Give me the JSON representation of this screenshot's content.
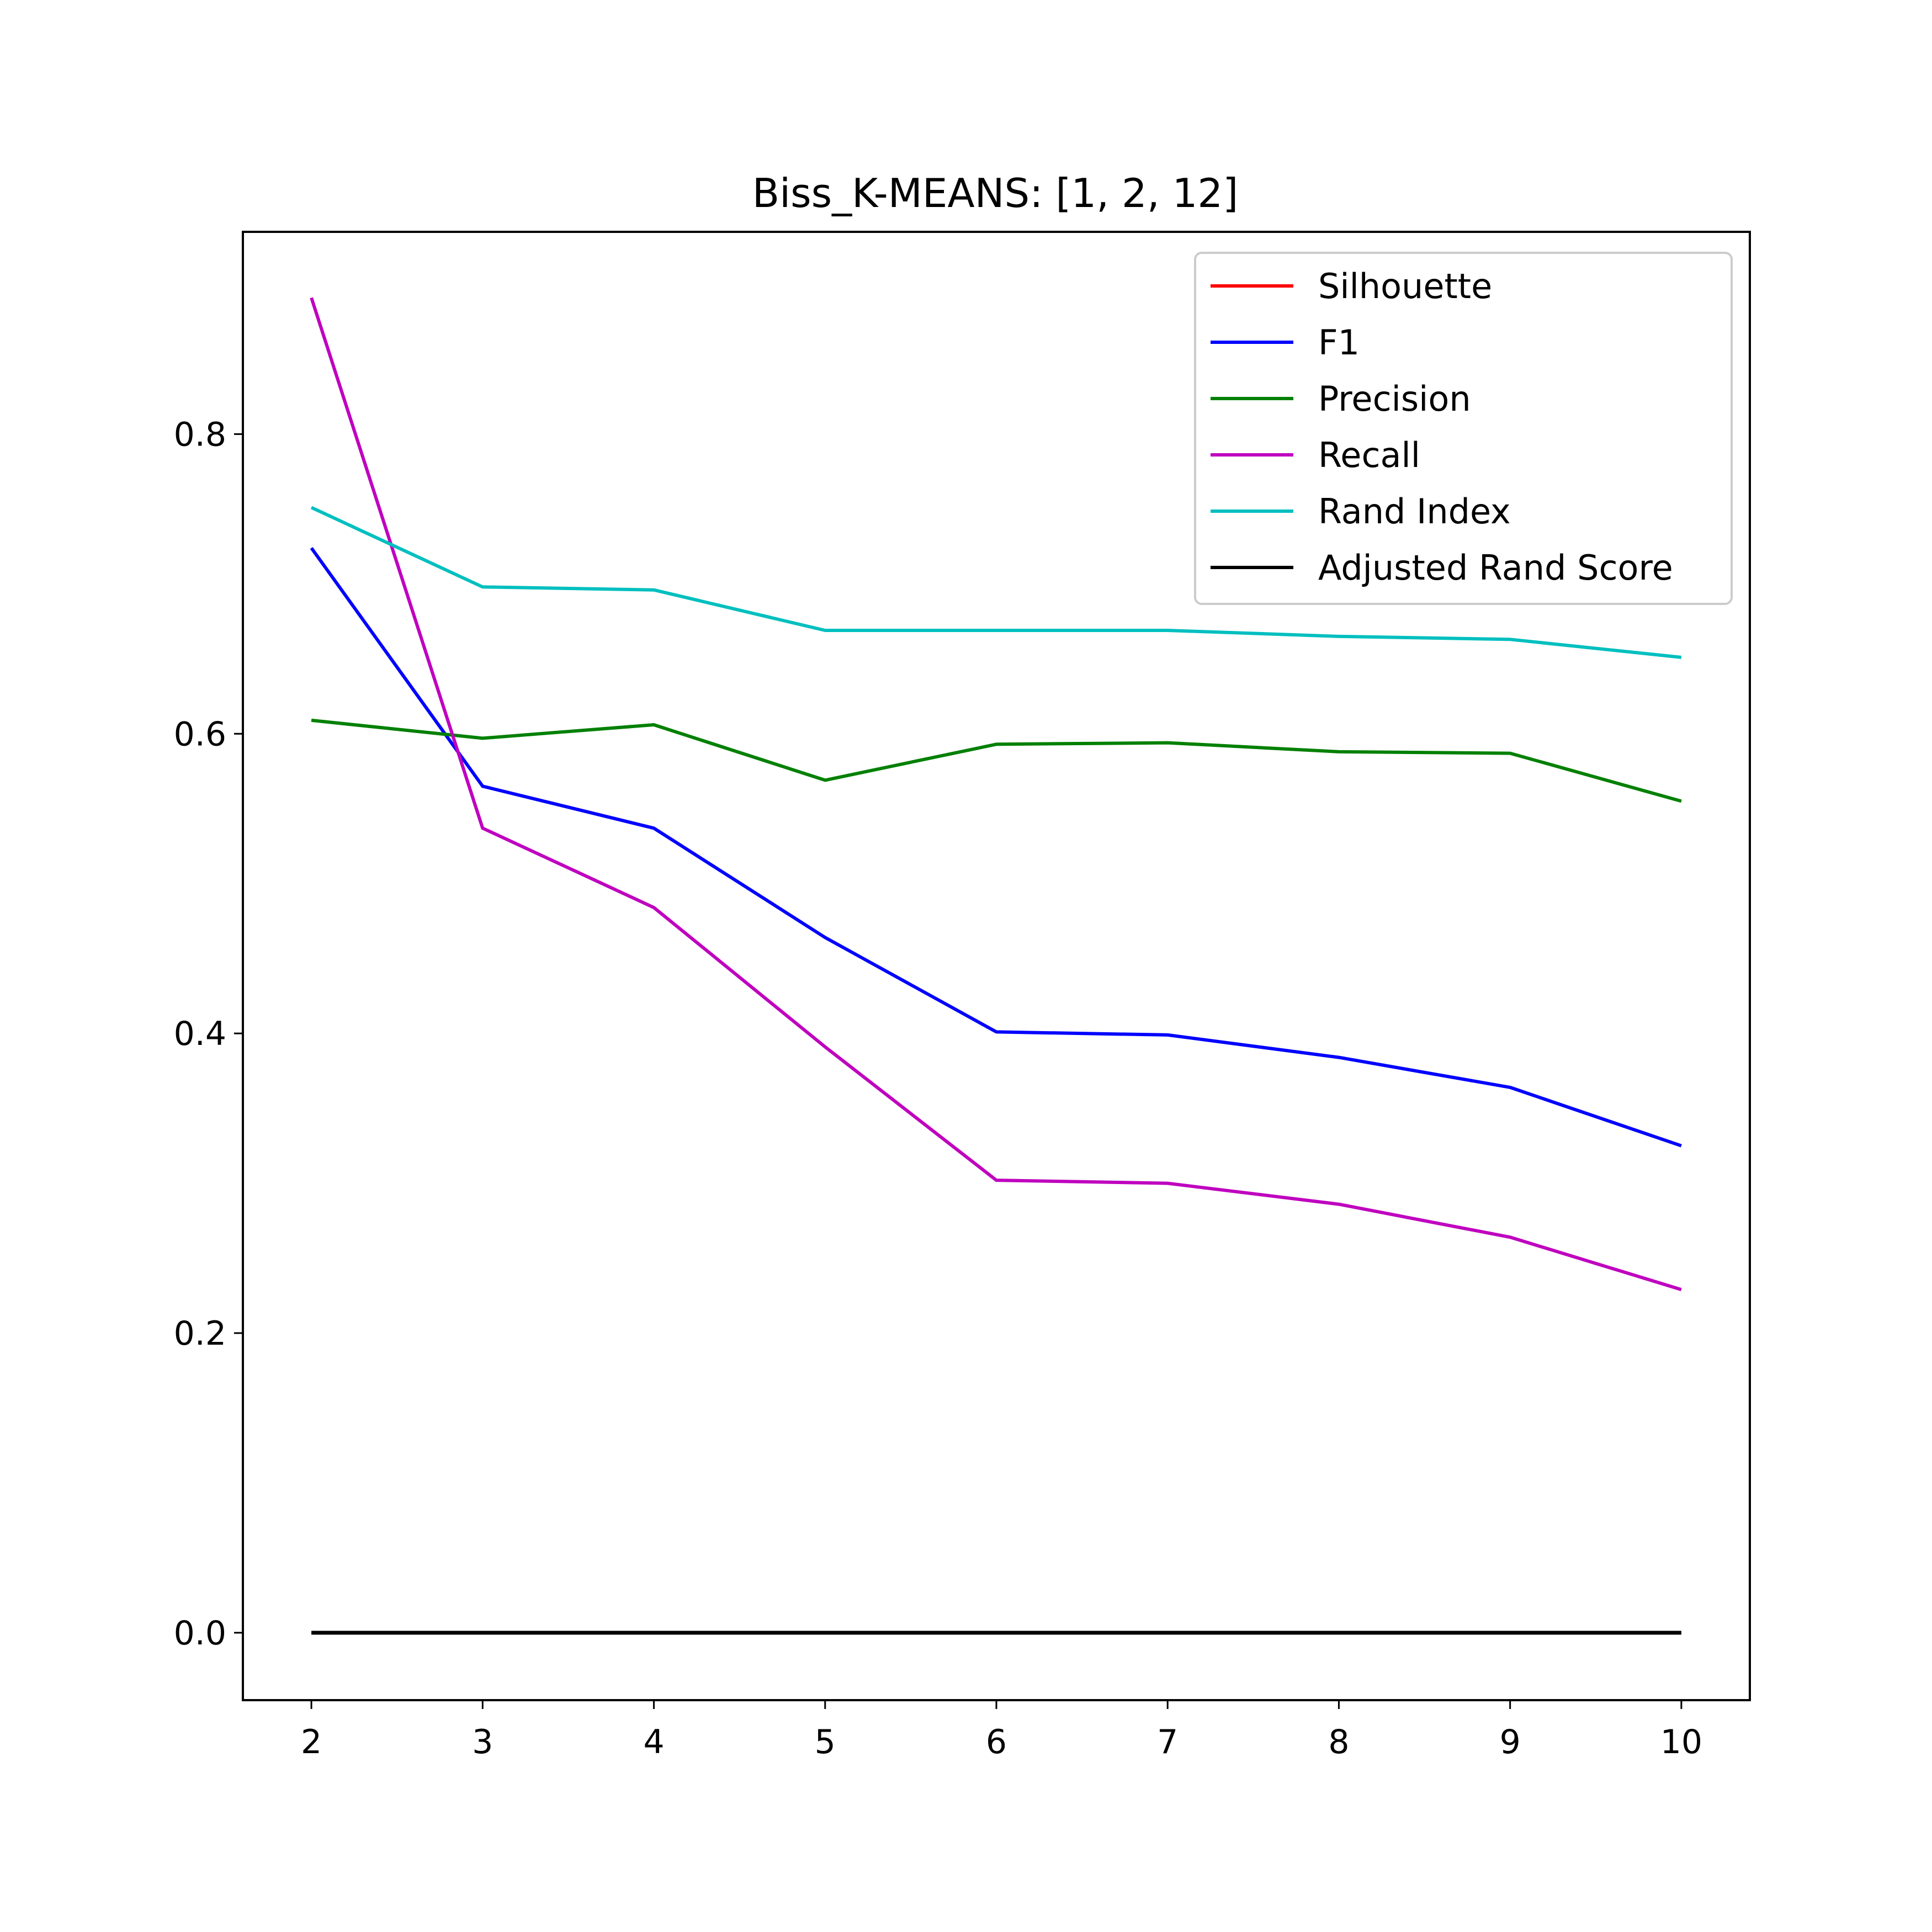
{
  "chart_data": {
    "type": "line",
    "title": "Biss_K-MEANS: [1, 2, 12]",
    "xlabel": "",
    "ylabel": "",
    "x": [
      2,
      3,
      4,
      5,
      6,
      7,
      8,
      9,
      10
    ],
    "xlim": [
      1.6,
      10.4
    ],
    "ylim": [
      -0.045,
      0.935
    ],
    "xticks": [
      2,
      3,
      4,
      5,
      6,
      7,
      8,
      9,
      10
    ],
    "yticks": [
      0.0,
      0.2,
      0.4,
      0.6,
      0.8
    ],
    "ytick_labels": [
      "0.0",
      "0.2",
      "0.4",
      "0.6",
      "0.8"
    ],
    "grid": false,
    "legend_position": "top-right",
    "series": [
      {
        "name": "Silhouette",
        "color": "#ff0000",
        "values": [
          null,
          null,
          null,
          null,
          null,
          null,
          null,
          null,
          null
        ]
      },
      {
        "name": "F1",
        "color": "#0000ff",
        "values": [
          0.724,
          0.565,
          0.537,
          0.464,
          0.401,
          0.399,
          0.384,
          0.364,
          0.325
        ]
      },
      {
        "name": "Precision",
        "color": "#008000",
        "values": [
          0.609,
          0.597,
          0.606,
          0.569,
          0.593,
          0.594,
          0.588,
          0.587,
          0.555
        ]
      },
      {
        "name": "Recall",
        "color": "#bf00bf",
        "values": [
          0.891,
          0.537,
          0.484,
          0.391,
          0.302,
          0.3,
          0.286,
          0.264,
          0.229
        ]
      },
      {
        "name": "Rand Index",
        "color": "#00bfbf",
        "values": [
          0.751,
          0.698,
          0.696,
          0.669,
          0.669,
          0.669,
          0.665,
          0.663,
          0.651
        ]
      },
      {
        "name": "Adjusted Rand Score",
        "color": "#000000",
        "values": [
          0.0,
          0.0,
          0.0,
          0.0,
          0.0,
          0.0,
          0.0,
          0.0,
          0.0
        ]
      }
    ]
  }
}
